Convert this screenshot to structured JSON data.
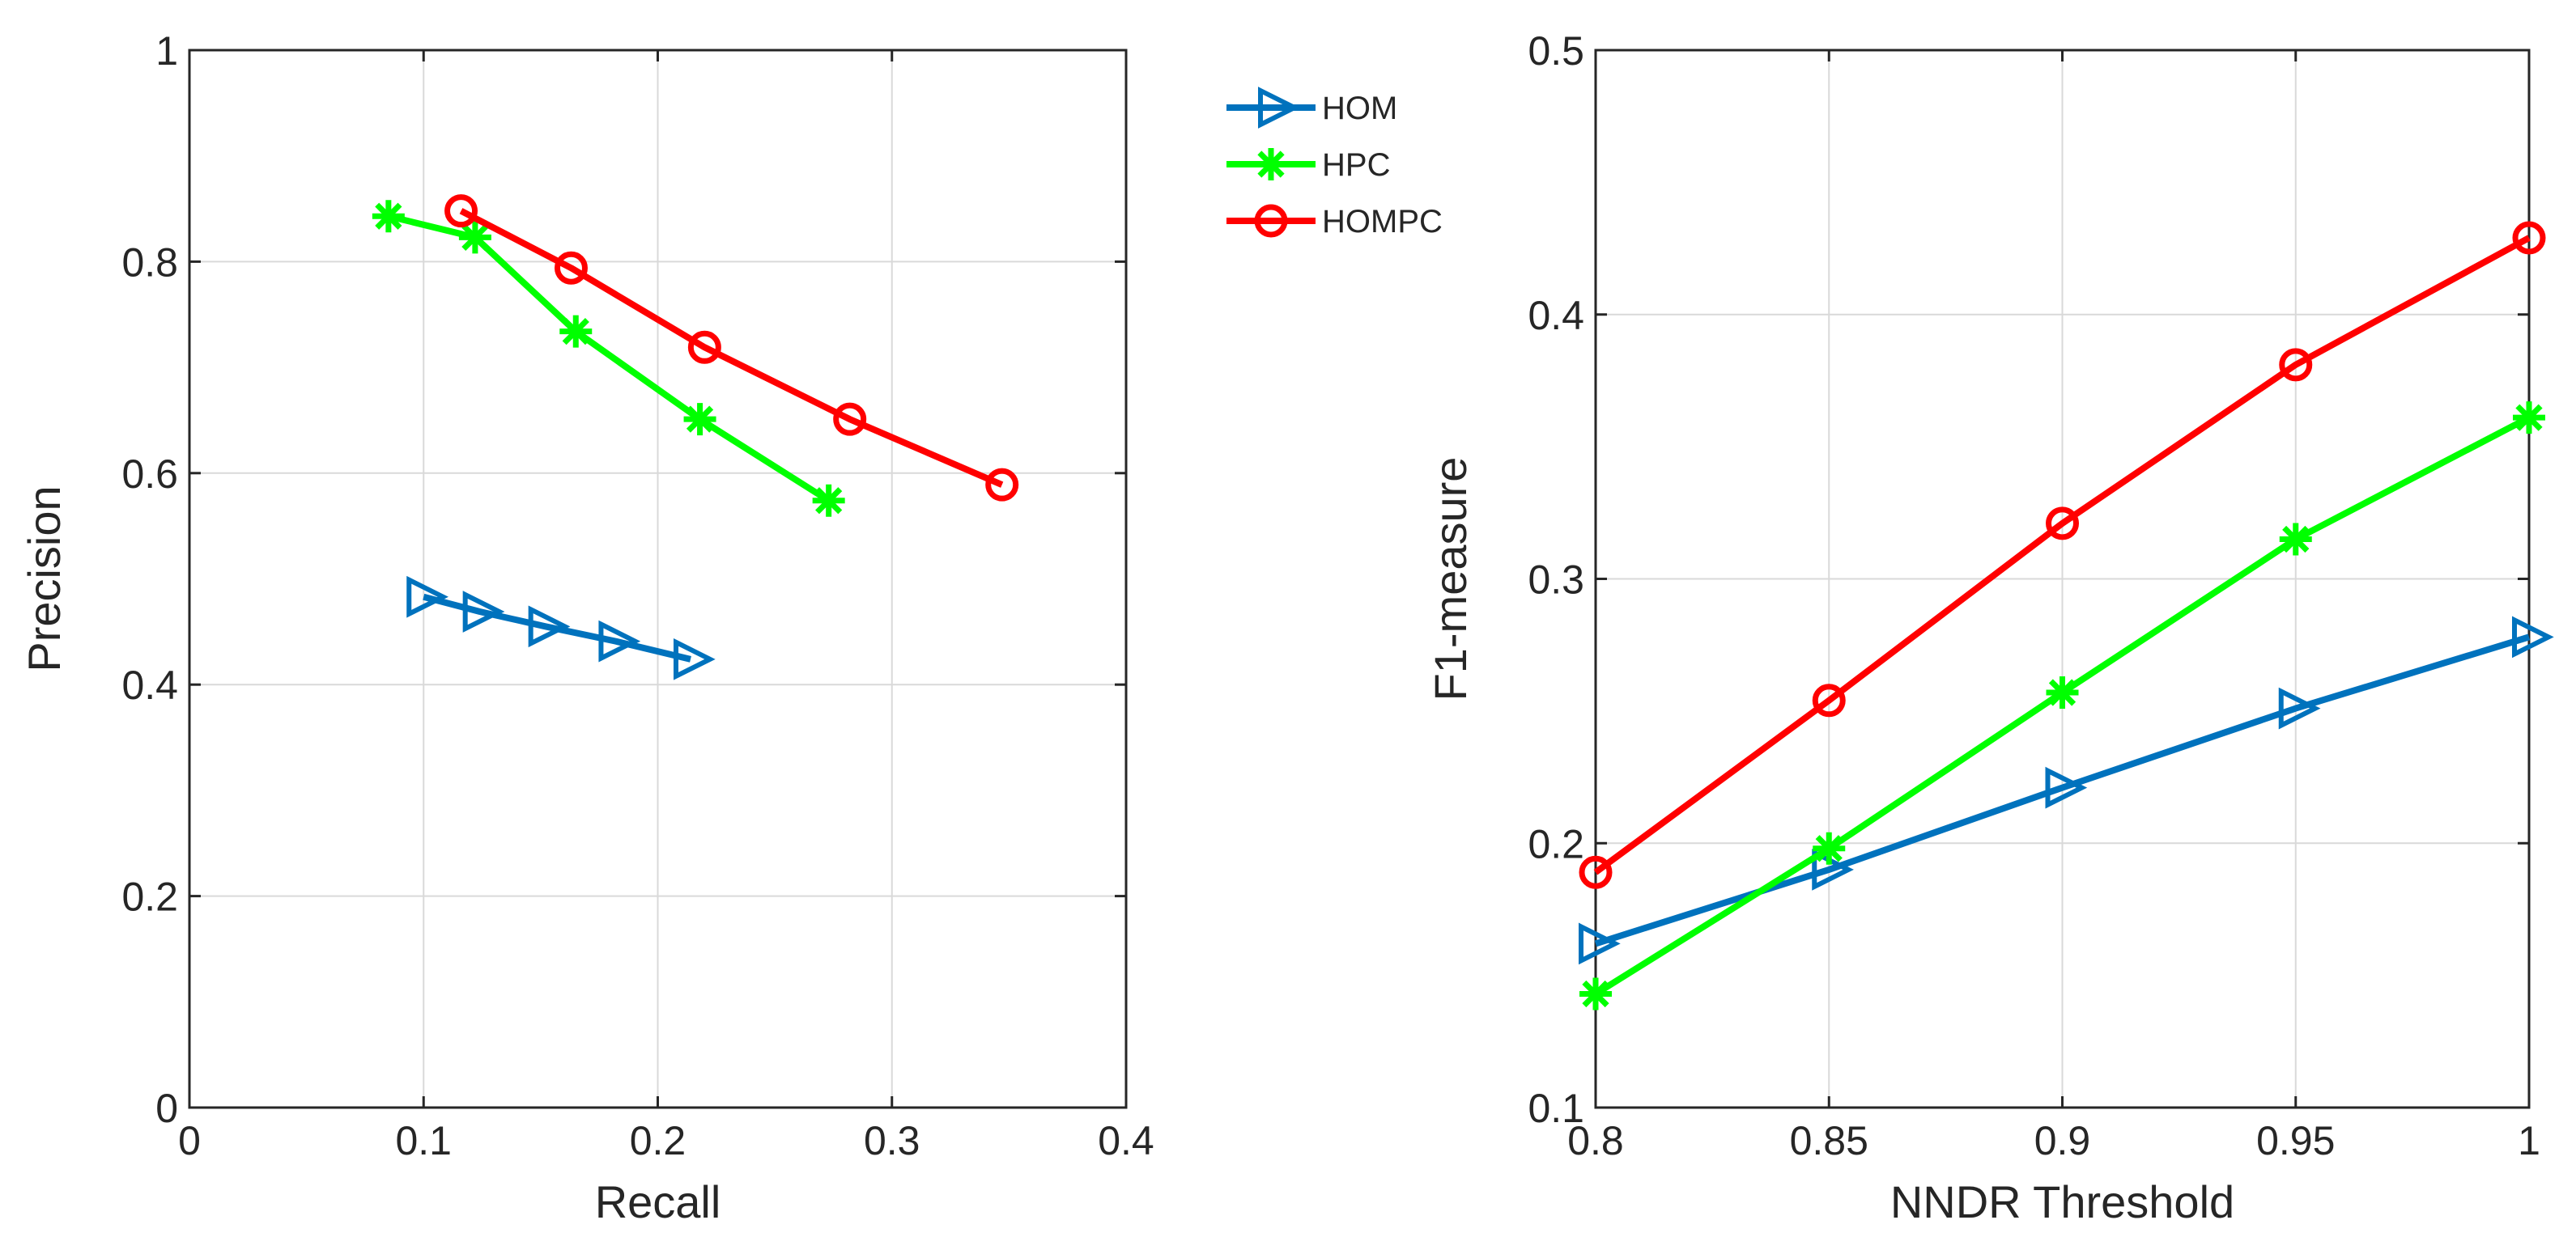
{
  "chart_data": [
    {
      "type": "line",
      "xlabel": "Recall",
      "ylabel": "Precision",
      "xlim": [
        0,
        0.4
      ],
      "ylim": [
        0,
        1
      ],
      "xticks": [
        0,
        0.1,
        0.2,
        0.3,
        0.4
      ],
      "xtick_labels": [
        "0",
        "0.1",
        "0.2",
        "0.3",
        "0.4"
      ],
      "yticks": [
        0,
        0.2,
        0.4,
        0.6,
        0.8,
        1
      ],
      "ytick_labels": [
        "0",
        "0.2",
        "0.4",
        "0.6",
        "0.8",
        "1"
      ],
      "grid": true,
      "legend": "outside-right",
      "series": [
        {
          "name": "HOM",
          "color": "#0072BD",
          "marker": "triangle-right",
          "x": [
            0.1,
            0.124,
            0.152,
            0.182,
            0.214
          ],
          "y": [
            0.483,
            0.469,
            0.455,
            0.441,
            0.424
          ]
        },
        {
          "name": "HPC",
          "color": "#00FF00",
          "marker": "asterisk",
          "x": [
            0.085,
            0.122,
            0.165,
            0.218,
            0.273
          ],
          "y": [
            0.843,
            0.823,
            0.734,
            0.651,
            0.574
          ]
        },
        {
          "name": "HOMPC",
          "color": "#FF0000",
          "marker": "circle",
          "x": [
            0.116,
            0.163,
            0.22,
            0.282,
            0.347
          ],
          "y": [
            0.848,
            0.794,
            0.719,
            0.651,
            0.589
          ]
        }
      ]
    },
    {
      "type": "line",
      "xlabel": "NNDR Threshold",
      "ylabel": "F1-measure",
      "xlim": [
        0.8,
        1
      ],
      "ylim": [
        0.1,
        0.5
      ],
      "xticks": [
        0.8,
        0.85,
        0.9,
        0.95,
        1
      ],
      "xtick_labels": [
        "0.8",
        "0.85",
        "0.9",
        "0.95",
        "1"
      ],
      "yticks": [
        0.1,
        0.2,
        0.3,
        0.4,
        0.5
      ],
      "ytick_labels": [
        "0.1",
        "0.2",
        "0.3",
        "0.4",
        "0.5"
      ],
      "grid": true,
      "legend": "none",
      "series": [
        {
          "name": "HOM",
          "color": "#0072BD",
          "marker": "triangle-right",
          "x": [
            0.8,
            0.85,
            0.9,
            0.95,
            1
          ],
          "y": [
            0.162,
            0.19,
            0.221,
            0.251,
            0.278
          ]
        },
        {
          "name": "HPC",
          "color": "#00FF00",
          "marker": "asterisk",
          "x": [
            0.8,
            0.85,
            0.9,
            0.95,
            1
          ],
          "y": [
            0.143,
            0.198,
            0.257,
            0.315,
            0.361
          ]
        },
        {
          "name": "HOMPC",
          "color": "#FF0000",
          "marker": "circle",
          "x": [
            0.8,
            0.85,
            0.9,
            0.95,
            1
          ],
          "y": [
            0.189,
            0.254,
            0.321,
            0.381,
            0.429
          ]
        }
      ]
    }
  ]
}
